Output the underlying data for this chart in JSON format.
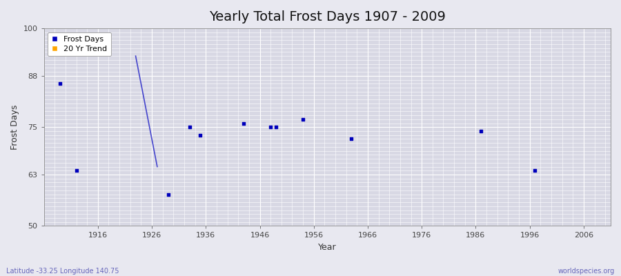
{
  "title": "Yearly Total Frost Days 1907 - 2009",
  "xlabel": "Year",
  "ylabel": "Frost Days",
  "xlim": [
    1906,
    2011
  ],
  "ylim": [
    50,
    100
  ],
  "yticks": [
    50,
    63,
    75,
    88,
    100
  ],
  "xticks": [
    1916,
    1926,
    1936,
    1946,
    1956,
    1966,
    1976,
    1986,
    1996,
    2006
  ],
  "bg_color": "#e8e8f0",
  "plot_bg_color": "#d8d8e4",
  "grid_color": "#ffffff",
  "scatter_color": "#0000bb",
  "trend_color": "#4444cc",
  "trend_x": [
    1923,
    1927
  ],
  "trend_y": [
    93,
    65
  ],
  "scatter_x": [
    1909,
    1912,
    1929,
    1933,
    1935,
    1943,
    1948,
    1949,
    1954,
    1963,
    1987,
    1997
  ],
  "scatter_y": [
    86,
    64,
    58,
    75,
    73,
    76,
    75,
    75,
    77,
    72,
    74,
    64
  ],
  "annotation_bottom_left": "Latitude -33.25 Longitude 140.75",
  "annotation_bottom_right": "worldspecies.org",
  "legend_labels": [
    "Frost Days",
    "20 Yr Trend"
  ],
  "legend_colors": [
    "#0000bb",
    "#ffa500"
  ],
  "title_fontsize": 14,
  "label_fontsize": 9,
  "tick_fontsize": 8,
  "annotation_fontsize": 7,
  "annotation_color": "#6666bb"
}
